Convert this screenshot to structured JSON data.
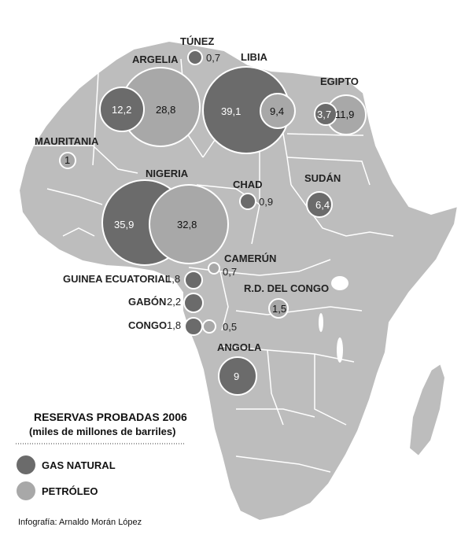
{
  "colors": {
    "gas": "#6b6b6b",
    "oil": "#a8a8a8",
    "land": "#bdbdbd",
    "border": "#ffffff"
  },
  "legend": {
    "title": "RESERVAS PROBADAS 2006",
    "subtitle": "(miles de millones de barriles)",
    "gas_label": "GAS NATURAL",
    "oil_label": "PETRÓLEO"
  },
  "credit": "Infografía: Arnaldo Morán López",
  "countries": [
    {
      "name": "TÚNEZ",
      "gas": "0,7"
    },
    {
      "name": "ARGELIA",
      "gas": "12,2",
      "oil": "28,8"
    },
    {
      "name": "LIBIA",
      "gas": "39,1",
      "oil": "9,4"
    },
    {
      "name": "EGIPTO",
      "gas": "3,7",
      "oil": "11,9"
    },
    {
      "name": "MAURITANIA",
      "oil": "1"
    },
    {
      "name": "NIGERIA",
      "gas": "35,9",
      "oil": "32,8"
    },
    {
      "name": "CHAD",
      "gas": "0,9"
    },
    {
      "name": "SUDÁN",
      "gas": "6,4"
    },
    {
      "name": "CAMERÚN",
      "oil": "0,7"
    },
    {
      "name": "GUINEA ECUATORIAL",
      "gas": "1,8"
    },
    {
      "name": "R.D. DEL CONGO",
      "oil": "1,5"
    },
    {
      "name": "GABÓN",
      "gas": "2,2"
    },
    {
      "name": "CONGO",
      "gas": "1,8",
      "oil": "0,5"
    },
    {
      "name": "ANGOLA",
      "gas": "9"
    }
  ]
}
